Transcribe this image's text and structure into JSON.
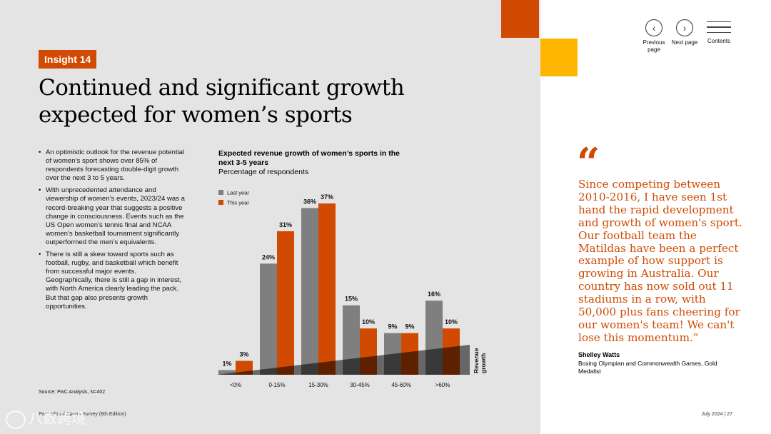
{
  "insight_tag": "Insight 14",
  "title": "Continued and significant growth expected for women’s sports",
  "bullets": [
    "An optimistic outlook for the revenue potential of women’s sport shows over 85% of respondents forecasting double-digit growth over the next 3 to 5 years.",
    "With unprecedented attendance and viewership of women’s events, 2023/24 was a record-breaking year that suggests a positive change in consciousness. Events such as the US Open women’s tennis final and NCAA women’s basketball tournament significantly outperformed the men’s equivalents.",
    "There is still a skew toward sports such as football, rugby, and basketball which benefit from successful major events. Geographically, there is still a gap in interest, with North America clearly leading the pack. But that gap also presents growth opportunities."
  ],
  "source": "Source: PwC Analysis, N=402",
  "footer_left": "PwC Global Sports Survey (8th Edition)",
  "footer_right": "July 2024 | 27",
  "watermark": "八数跨境",
  "nav": {
    "previous": "Previous page",
    "next": "Next page",
    "contents": "Contents",
    "prev_glyph": "‹",
    "next_glyph": "›"
  },
  "quote": {
    "mark": "“",
    "text": "Since competing between 2010-2016, I have seen 1st hand the rapid development and growth of women's sport. Our football team the Matildas have been a perfect example of how support is growing in Australia. Our country has now sold out 11 stadiums in a row, with 50,000 plus fans cheering for our women's team! We can't lose this momentum.”",
    "author": "Shelley Watts",
    "role": "Boxing Olympian and Commonwealth Games, Gold Medalist"
  },
  "colors": {
    "accent": "#d04a02",
    "yellow": "#ffb600",
    "last_year": "#7f7f7f",
    "this_year": "#d04a02",
    "panel": "#e5e4e4"
  },
  "chart_data": {
    "type": "bar",
    "title": "Expected revenue growth of women’s sports in the next 3-5 years",
    "subtitle": "Percentage of respondents",
    "categories": [
      "<0%",
      "0-15%",
      "15-30%",
      "30-45%",
      "45-60%",
      ">60%"
    ],
    "series": [
      {
        "name": "Last year",
        "values": [
          1,
          24,
          36,
          15,
          9,
          16
        ],
        "color": "#7f7f7f"
      },
      {
        "name": "This year",
        "values": [
          3,
          31,
          37,
          10,
          9,
          10
        ],
        "color": "#d04a02"
      }
    ],
    "value_suffix": "%",
    "ylim": [
      0,
      37
    ],
    "legend_position": "top-left",
    "growth_wedge_label": "Revenue growth",
    "grid": false
  }
}
